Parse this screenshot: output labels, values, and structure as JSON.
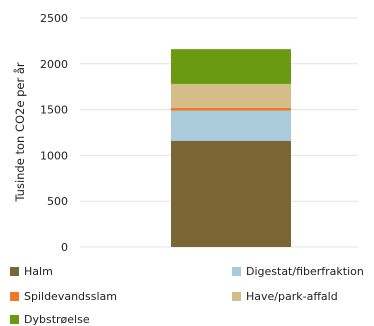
{
  "chart_data": {
    "type": "bar",
    "stacked": true,
    "categories": [
      ""
    ],
    "ylabel": "Tusinde ton CO2e per år",
    "ylim": [
      0,
      2500
    ],
    "yticks": [
      0,
      500,
      1000,
      1500,
      2000,
      2500
    ],
    "grid": true,
    "legend_position": "bottom",
    "series": [
      {
        "name": "Halm",
        "values": [
          1160
        ],
        "color": "#7a6535"
      },
      {
        "name": "Digestat/fiberfraktion",
        "values": [
          330
        ],
        "color": "#a9cbdc"
      },
      {
        "name": "Spildevandsslam",
        "values": [
          30
        ],
        "color": "#f07a1f"
      },
      {
        "name": "Have/park-affald",
        "values": [
          260
        ],
        "color": "#d5bd8a"
      },
      {
        "name": "Dybstrøelse",
        "values": [
          380
        ],
        "color": "#6a9a12"
      }
    ]
  }
}
